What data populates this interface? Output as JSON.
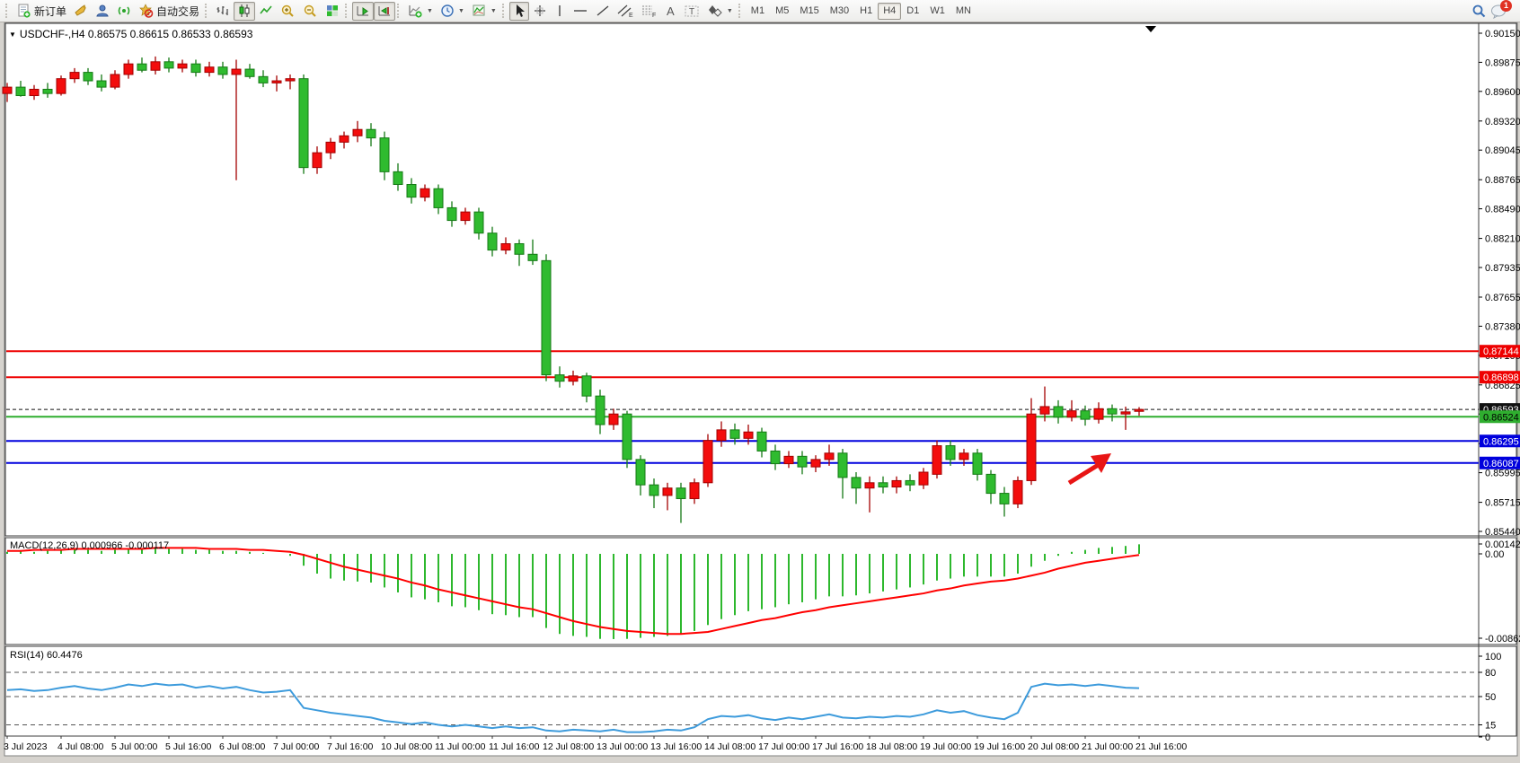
{
  "toolbar": {
    "new_order": "新订单",
    "auto_trading": "自动交易",
    "timeframes": [
      "M1",
      "M5",
      "M15",
      "M30",
      "H1",
      "H4",
      "D1",
      "W1",
      "MN"
    ],
    "selected_timeframe": "H4",
    "chat_badge": "1"
  },
  "chart": {
    "title_text": "USDCHF-,H4  0.86575 0.86615 0.86533 0.86593",
    "symbol": "USDCHF-",
    "timeframe": "H4",
    "macd_label": "MACD(12,26,9) 0.000966 -0.000117",
    "rsi_label": "RSI(14) 60.4476"
  },
  "chart_data": {
    "type": "candlestick",
    "title": "USDCHF- H4",
    "current_price": "0.86593",
    "price_axis_ticks": [
      "0.90150",
      "0.89875",
      "0.89600",
      "0.89320",
      "0.89045",
      "0.88765",
      "0.88490",
      "0.88210",
      "0.87935",
      "0.87655",
      "0.87380",
      "0.87105",
      "0.86825",
      "0.86550",
      "0.86270",
      "0.85995",
      "0.85715",
      "0.85440"
    ],
    "price_axis_range": [
      0.9015,
      0.8544
    ],
    "colors": {
      "up": "#f30d0d",
      "up_stroke": "#a30000",
      "down": "#2fbb2f",
      "down_stroke": "#157a15",
      "macd_hist": "#2db82d",
      "macd_signal": "#ff0000",
      "rsi_line": "#3d9bdc",
      "annotation": "#e81515"
    },
    "hlines": [
      {
        "price": 0.87144,
        "label": "0.87144",
        "color": "#ee0000",
        "text_color": "#ffffff",
        "style": "solid"
      },
      {
        "price": 0.86898,
        "label": "0.86898",
        "color": "#ee0000",
        "text_color": "#ffffff",
        "style": "solid"
      },
      {
        "price": 0.86593,
        "label": "0.86593",
        "color": "#111111",
        "text_color": "#ffffff",
        "style": "dashed"
      },
      {
        "price": 0.86524,
        "label": "0.86524",
        "color": "#2fae2f",
        "text_color": "#000000",
        "style": "solid"
      },
      {
        "price": 0.86295,
        "label": "0.86295",
        "color": "#0000dd",
        "text_color": "#ffffff",
        "style": "solid"
      },
      {
        "price": 0.86087,
        "label": "0.86087",
        "color": "#0000dd",
        "text_color": "#ffffff",
        "style": "solid"
      }
    ],
    "candles_ohlc": [
      [
        0.8958,
        0.8968,
        0.895,
        0.8964
      ],
      [
        0.8964,
        0.897,
        0.8955,
        0.8956
      ],
      [
        0.8956,
        0.8966,
        0.8952,
        0.8962
      ],
      [
        0.8962,
        0.8968,
        0.8954,
        0.8958
      ],
      [
        0.8958,
        0.8975,
        0.8956,
        0.8972
      ],
      [
        0.8972,
        0.8982,
        0.8968,
        0.8978
      ],
      [
        0.8978,
        0.8982,
        0.8966,
        0.897
      ],
      [
        0.897,
        0.8976,
        0.896,
        0.8964
      ],
      [
        0.8964,
        0.898,
        0.8962,
        0.8976
      ],
      [
        0.8976,
        0.899,
        0.8972,
        0.8986
      ],
      [
        0.8986,
        0.8992,
        0.8978,
        0.898
      ],
      [
        0.898,
        0.8993,
        0.8976,
        0.8988
      ],
      [
        0.8988,
        0.8992,
        0.8978,
        0.8982
      ],
      [
        0.8982,
        0.899,
        0.8978,
        0.8986
      ],
      [
        0.8986,
        0.899,
        0.8974,
        0.8978
      ],
      [
        0.8978,
        0.8988,
        0.8974,
        0.8983
      ],
      [
        0.8983,
        0.8988,
        0.8972,
        0.8976
      ],
      [
        0.8976,
        0.899,
        0.8876,
        0.8981
      ],
      [
        0.8981,
        0.8986,
        0.8972,
        0.8974
      ],
      [
        0.8974,
        0.898,
        0.8964,
        0.8968
      ],
      [
        0.8968,
        0.8975,
        0.896,
        0.897
      ],
      [
        0.897,
        0.8976,
        0.8962,
        0.8972
      ],
      [
        0.8972,
        0.8976,
        0.8882,
        0.8888
      ],
      [
        0.8888,
        0.8908,
        0.8882,
        0.8902
      ],
      [
        0.8902,
        0.8916,
        0.8896,
        0.8912
      ],
      [
        0.8912,
        0.8922,
        0.8906,
        0.8918
      ],
      [
        0.8918,
        0.8932,
        0.8912,
        0.8924
      ],
      [
        0.8924,
        0.893,
        0.8908,
        0.8916
      ],
      [
        0.8916,
        0.8922,
        0.8876,
        0.8884
      ],
      [
        0.8884,
        0.8892,
        0.8866,
        0.8872
      ],
      [
        0.8872,
        0.8878,
        0.8854,
        0.886
      ],
      [
        0.886,
        0.8872,
        0.8856,
        0.8868
      ],
      [
        0.8868,
        0.8872,
        0.8844,
        0.885
      ],
      [
        0.885,
        0.8856,
        0.8832,
        0.8838
      ],
      [
        0.8838,
        0.885,
        0.8834,
        0.8846
      ],
      [
        0.8846,
        0.885,
        0.882,
        0.8826
      ],
      [
        0.8826,
        0.8832,
        0.8804,
        0.881
      ],
      [
        0.881,
        0.8822,
        0.8806,
        0.8816
      ],
      [
        0.8816,
        0.882,
        0.8795,
        0.8806
      ],
      [
        0.8806,
        0.882,
        0.8796,
        0.88
      ],
      [
        0.88,
        0.8806,
        0.8686,
        0.8692
      ],
      [
        0.8692,
        0.87,
        0.868,
        0.8686
      ],
      [
        0.8686,
        0.8696,
        0.8682,
        0.8691
      ],
      [
        0.8691,
        0.8694,
        0.8666,
        0.8672
      ],
      [
        0.8672,
        0.8678,
        0.8636,
        0.8645
      ],
      [
        0.8645,
        0.866,
        0.864,
        0.8655
      ],
      [
        0.8655,
        0.8658,
        0.8604,
        0.8612
      ],
      [
        0.8612,
        0.8616,
        0.8578,
        0.8588
      ],
      [
        0.8588,
        0.8594,
        0.8566,
        0.8578
      ],
      [
        0.8578,
        0.859,
        0.8564,
        0.8585
      ],
      [
        0.8585,
        0.859,
        0.8552,
        0.8575
      ],
      [
        0.8575,
        0.8594,
        0.857,
        0.859
      ],
      [
        0.859,
        0.8636,
        0.8586,
        0.863
      ],
      [
        0.863,
        0.8648,
        0.8624,
        0.864
      ],
      [
        0.864,
        0.8646,
        0.8626,
        0.8632
      ],
      [
        0.8632,
        0.8645,
        0.8626,
        0.8638
      ],
      [
        0.8638,
        0.8642,
        0.8614,
        0.862
      ],
      [
        0.862,
        0.8626,
        0.8602,
        0.8608
      ],
      [
        0.8608,
        0.862,
        0.8604,
        0.8615
      ],
      [
        0.8615,
        0.862,
        0.8598,
        0.8605
      ],
      [
        0.8605,
        0.8616,
        0.86,
        0.8612
      ],
      [
        0.8612,
        0.8626,
        0.8606,
        0.8618
      ],
      [
        0.8618,
        0.8622,
        0.8575,
        0.8595
      ],
      [
        0.8595,
        0.86,
        0.857,
        0.8585
      ],
      [
        0.8585,
        0.8596,
        0.8562,
        0.859
      ],
      [
        0.859,
        0.8596,
        0.858,
        0.8586
      ],
      [
        0.8586,
        0.8596,
        0.858,
        0.8592
      ],
      [
        0.8592,
        0.8598,
        0.8582,
        0.8588
      ],
      [
        0.8588,
        0.8604,
        0.8584,
        0.86
      ],
      [
        0.8598,
        0.863,
        0.8594,
        0.8625
      ],
      [
        0.8625,
        0.863,
        0.8606,
        0.8612
      ],
      [
        0.8612,
        0.8622,
        0.8606,
        0.8618
      ],
      [
        0.8618,
        0.8622,
        0.8592,
        0.8598
      ],
      [
        0.8598,
        0.8602,
        0.857,
        0.858
      ],
      [
        0.858,
        0.8586,
        0.8558,
        0.857
      ],
      [
        0.857,
        0.8596,
        0.8566,
        0.8592
      ],
      [
        0.8592,
        0.867,
        0.8588,
        0.8655
      ],
      [
        0.8655,
        0.8681,
        0.8648,
        0.8662
      ],
      [
        0.8662,
        0.8668,
        0.8646,
        0.8652
      ],
      [
        0.8652,
        0.8668,
        0.8648,
        0.8658
      ],
      [
        0.8658,
        0.8663,
        0.8644,
        0.865
      ],
      [
        0.865,
        0.8666,
        0.8646,
        0.866
      ],
      [
        0.866,
        0.8664,
        0.8648,
        0.8655
      ],
      [
        0.8655,
        0.8662,
        0.864,
        0.8657
      ],
      [
        0.86575,
        0.86615,
        0.86533,
        0.86593
      ]
    ],
    "macd": {
      "label": "MACD(12,26,9) 0.000966 -0.000117",
      "axis_labels": [
        "0.001423",
        "0.00",
        "-0.008626"
      ],
      "main": [
        0.0002,
        0.0003,
        0.0002,
        0.0003,
        0.0004,
        0.0005,
        0.0004,
        0.0003,
        0.0004,
        0.0005,
        0.0005,
        0.0006,
        0.0005,
        0.0005,
        0.0004,
        0.0004,
        0.0003,
        0.0003,
        0.0002,
        0.0001,
        0.0,
        -0.0002,
        -0.0012,
        -0.002,
        -0.0025,
        -0.0027,
        -0.0028,
        -0.0029,
        -0.0034,
        -0.0039,
        -0.0044,
        -0.0046,
        -0.0049,
        -0.0053,
        -0.0054,
        -0.0057,
        -0.0061,
        -0.0062,
        -0.0064,
        -0.0064,
        -0.0075,
        -0.0081,
        -0.0083,
        -0.0084,
        -0.0086,
        -0.00862,
        -0.0086,
        -0.0085,
        -0.0084,
        -0.0083,
        -0.0081,
        -0.0078,
        -0.0072,
        -0.0066,
        -0.0062,
        -0.0058,
        -0.0056,
        -0.0054,
        -0.0051,
        -0.0049,
        -0.0046,
        -0.0043,
        -0.0043,
        -0.0042,
        -0.004,
        -0.0038,
        -0.0036,
        -0.0034,
        -0.0031,
        -0.0027,
        -0.0025,
        -0.0023,
        -0.0023,
        -0.0023,
        -0.0023,
        -0.002,
        -0.0013,
        -0.0007,
        -0.0002,
        0.0002,
        0.0004,
        0.0006,
        0.0007,
        0.0008,
        0.000966
      ],
      "signal": [
        0.0003,
        0.0003,
        0.0004,
        0.0004,
        0.0004,
        0.0005,
        0.0005,
        0.0005,
        0.0005,
        0.0005,
        0.0005,
        0.0006,
        0.0006,
        0.0006,
        0.0006,
        0.0005,
        0.0005,
        0.0005,
        0.0004,
        0.0004,
        0.0003,
        0.0002,
        -0.0001,
        -0.0005,
        -0.0009,
        -0.0013,
        -0.0016,
        -0.0019,
        -0.0022,
        -0.0025,
        -0.0029,
        -0.0032,
        -0.0036,
        -0.0039,
        -0.0042,
        -0.0045,
        -0.0048,
        -0.0051,
        -0.0054,
        -0.0056,
        -0.006,
        -0.0064,
        -0.0068,
        -0.0071,
        -0.0074,
        -0.0076,
        -0.0078,
        -0.0079,
        -0.008,
        -0.0081,
        -0.0081,
        -0.008,
        -0.0079,
        -0.0076,
        -0.0073,
        -0.007,
        -0.0067,
        -0.0065,
        -0.0062,
        -0.0059,
        -0.0057,
        -0.0054,
        -0.0052,
        -0.005,
        -0.0048,
        -0.0046,
        -0.0044,
        -0.0042,
        -0.004,
        -0.0037,
        -0.0035,
        -0.0032,
        -0.003,
        -0.0028,
        -0.0027,
        -0.0025,
        -0.0022,
        -0.0019,
        -0.0015,
        -0.0012,
        -0.0009,
        -0.0007,
        -0.0005,
        -0.0003,
        -0.000117
      ]
    },
    "rsi": {
      "label": "RSI(14) 60.4476",
      "axis_labels": [
        "100",
        "80",
        "50",
        "15",
        "0"
      ],
      "levels": [
        80,
        50,
        15
      ],
      "values": [
        58,
        59,
        57,
        58,
        61,
        63,
        60,
        58,
        61,
        65,
        63,
        66,
        64,
        65,
        61,
        63,
        60,
        62,
        58,
        55,
        56,
        58,
        36,
        33,
        30,
        28,
        26,
        24,
        20,
        18,
        16,
        18,
        15,
        13,
        15,
        13,
        11,
        13,
        11,
        12,
        8,
        7,
        9,
        8,
        7,
        9,
        6,
        6,
        7,
        9,
        8,
        12,
        22,
        26,
        25,
        27,
        23,
        21,
        24,
        22,
        25,
        28,
        24,
        23,
        25,
        24,
        26,
        25,
        28,
        33,
        30,
        32,
        27,
        24,
        22,
        30,
        62,
        66,
        64,
        65,
        63,
        65,
        63,
        61,
        60.4476
      ]
    },
    "time_labels": [
      "3 Jul 2023",
      "4 Jul 08:00",
      "5 Jul 00:00",
      "5 Jul 16:00",
      "6 Jul 08:00",
      "7 Jul 00:00",
      "7 Jul 16:00",
      "10 Jul 08:00",
      "11 Jul 00:00",
      "11 Jul 16:00",
      "12 Jul 08:00",
      "13 Jul 00:00",
      "13 Jul 16:00",
      "14 Jul 08:00",
      "17 Jul 00:00",
      "17 Jul 16:00",
      "18 Jul 08:00",
      "19 Jul 00:00",
      "19 Jul 16:00",
      "20 Jul 08:00",
      "21 Jul 00:00",
      "21 Jul 16:00"
    ],
    "annotation": {
      "type": "arrow-up-right",
      "color": "#e81515"
    }
  }
}
